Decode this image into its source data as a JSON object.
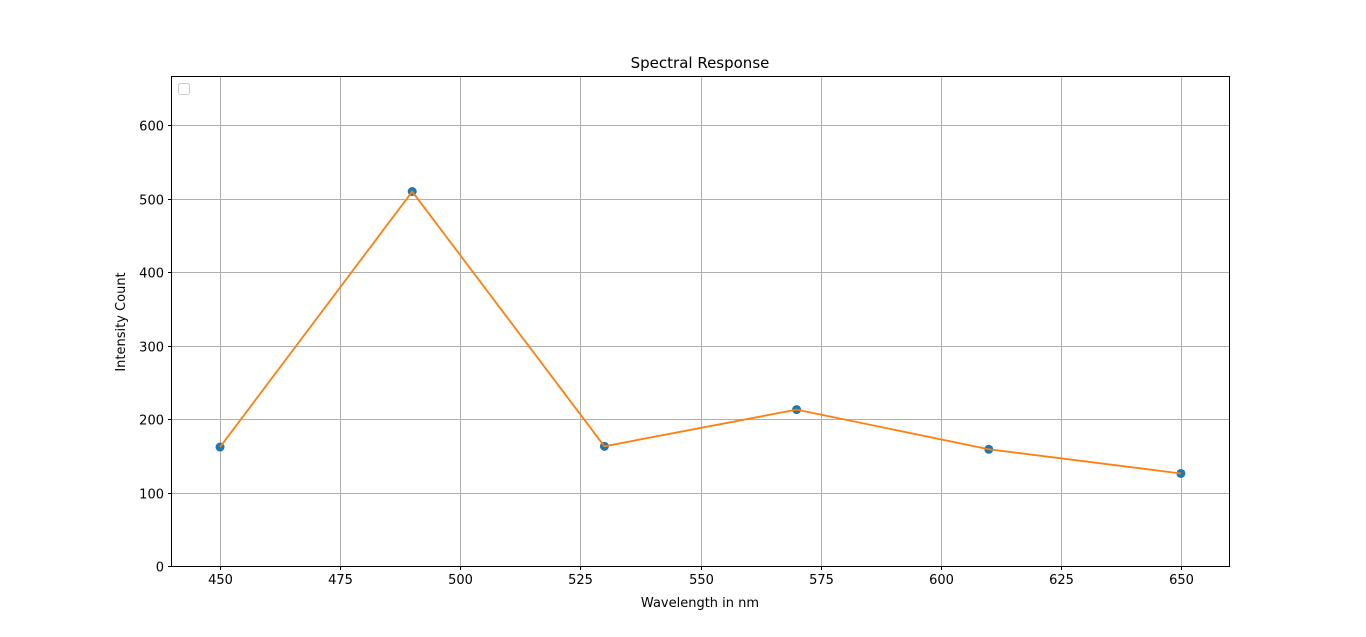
{
  "chart_data": {
    "type": "line",
    "title": "Spectral Response",
    "xlabel": "Wavelength in nm",
    "ylabel": "Intensity Count",
    "xlim": [
      440,
      660
    ],
    "ylim": [
      0,
      666
    ],
    "xticks": [
      450,
      475,
      500,
      525,
      550,
      575,
      600,
      625,
      650
    ],
    "yticks": [
      0,
      100,
      200,
      300,
      400,
      500,
      600
    ],
    "grid": true,
    "legend": {
      "placement": "top-left",
      "entries": []
    },
    "series": [
      {
        "x": [
          450,
          490,
          530,
          570,
          610,
          650
        ],
        "y": [
          162,
          510,
          163,
          213,
          159,
          126
        ],
        "marker_color": "#1f77b4",
        "line_color": "#ff7f0e"
      }
    ]
  }
}
